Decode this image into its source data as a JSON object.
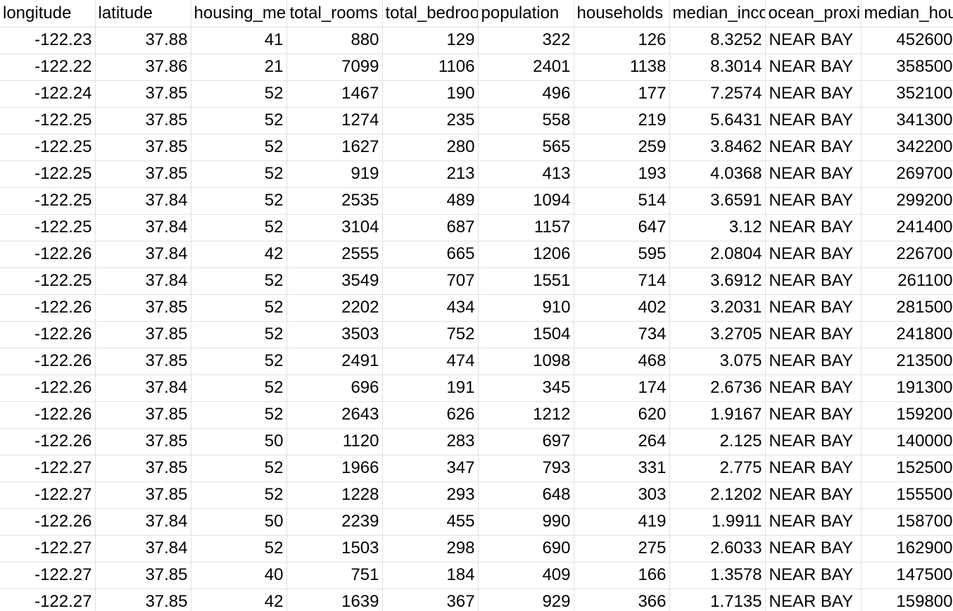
{
  "columns": [
    {
      "label": "longitude",
      "type": "num"
    },
    {
      "label": "latitude",
      "type": "num"
    },
    {
      "label": "housing_median_age",
      "type": "num"
    },
    {
      "label": "total_rooms",
      "type": "num"
    },
    {
      "label": "total_bedrooms",
      "type": "num"
    },
    {
      "label": "population",
      "type": "num"
    },
    {
      "label": "households",
      "type": "num"
    },
    {
      "label": "median_income",
      "type": "num"
    },
    {
      "label": "ocean_proximity",
      "type": "txt"
    },
    {
      "label": "median_house_value",
      "type": "num"
    }
  ],
  "rows": [
    [
      "-122.23",
      "37.88",
      "41",
      "880",
      "129",
      "322",
      "126",
      "8.3252",
      "NEAR BAY",
      "452600"
    ],
    [
      "-122.22",
      "37.86",
      "21",
      "7099",
      "1106",
      "2401",
      "1138",
      "8.3014",
      "NEAR BAY",
      "358500"
    ],
    [
      "-122.24",
      "37.85",
      "52",
      "1467",
      "190",
      "496",
      "177",
      "7.2574",
      "NEAR BAY",
      "352100"
    ],
    [
      "-122.25",
      "37.85",
      "52",
      "1274",
      "235",
      "558",
      "219",
      "5.6431",
      "NEAR BAY",
      "341300"
    ],
    [
      "-122.25",
      "37.85",
      "52",
      "1627",
      "280",
      "565",
      "259",
      "3.8462",
      "NEAR BAY",
      "342200"
    ],
    [
      "-122.25",
      "37.85",
      "52",
      "919",
      "213",
      "413",
      "193",
      "4.0368",
      "NEAR BAY",
      "269700"
    ],
    [
      "-122.25",
      "37.84",
      "52",
      "2535",
      "489",
      "1094",
      "514",
      "3.6591",
      "NEAR BAY",
      "299200"
    ],
    [
      "-122.25",
      "37.84",
      "52",
      "3104",
      "687",
      "1157",
      "647",
      "3.12",
      "NEAR BAY",
      "241400"
    ],
    [
      "-122.26",
      "37.84",
      "42",
      "2555",
      "665",
      "1206",
      "595",
      "2.0804",
      "NEAR BAY",
      "226700"
    ],
    [
      "-122.25",
      "37.84",
      "52",
      "3549",
      "707",
      "1551",
      "714",
      "3.6912",
      "NEAR BAY",
      "261100"
    ],
    [
      "-122.26",
      "37.85",
      "52",
      "2202",
      "434",
      "910",
      "402",
      "3.2031",
      "NEAR BAY",
      "281500"
    ],
    [
      "-122.26",
      "37.85",
      "52",
      "3503",
      "752",
      "1504",
      "734",
      "3.2705",
      "NEAR BAY",
      "241800"
    ],
    [
      "-122.26",
      "37.85",
      "52",
      "2491",
      "474",
      "1098",
      "468",
      "3.075",
      "NEAR BAY",
      "213500"
    ],
    [
      "-122.26",
      "37.84",
      "52",
      "696",
      "191",
      "345",
      "174",
      "2.6736",
      "NEAR BAY",
      "191300"
    ],
    [
      "-122.26",
      "37.85",
      "52",
      "2643",
      "626",
      "1212",
      "620",
      "1.9167",
      "NEAR BAY",
      "159200"
    ],
    [
      "-122.26",
      "37.85",
      "50",
      "1120",
      "283",
      "697",
      "264",
      "2.125",
      "NEAR BAY",
      "140000"
    ],
    [
      "-122.27",
      "37.85",
      "52",
      "1966",
      "347",
      "793",
      "331",
      "2.775",
      "NEAR BAY",
      "152500"
    ],
    [
      "-122.27",
      "37.85",
      "52",
      "1228",
      "293",
      "648",
      "303",
      "2.1202",
      "NEAR BAY",
      "155500"
    ],
    [
      "-122.26",
      "37.84",
      "50",
      "2239",
      "455",
      "990",
      "419",
      "1.9911",
      "NEAR BAY",
      "158700"
    ],
    [
      "-122.27",
      "37.84",
      "52",
      "1503",
      "298",
      "690",
      "275",
      "2.6033",
      "NEAR BAY",
      "162900"
    ],
    [
      "-122.27",
      "37.85",
      "40",
      "751",
      "184",
      "409",
      "166",
      "1.3578",
      "NEAR BAY",
      "147500"
    ],
    [
      "-122.27",
      "37.85",
      "42",
      "1639",
      "367",
      "929",
      "366",
      "1.7135",
      "NEAR BAY",
      "159800"
    ]
  ]
}
